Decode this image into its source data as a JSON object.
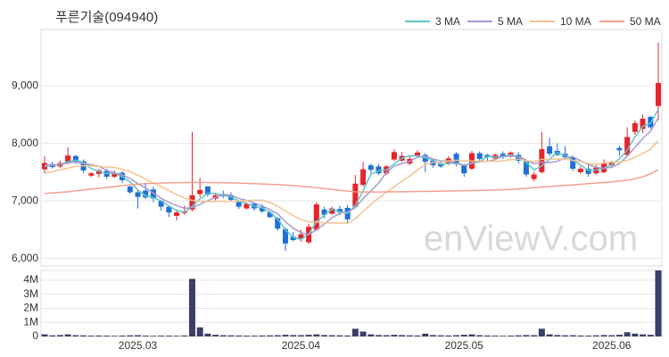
{
  "chart_data": [
    {
      "type": "candlestick",
      "title": "푸른기술(094940)",
      "watermark": "enViewV.com",
      "open": [
        7550,
        7640,
        7600,
        7660,
        7780,
        7690,
        7440,
        7470,
        7520,
        7420,
        7490,
        7250,
        7150,
        7180,
        7200,
        7000,
        6900,
        6740,
        6790,
        6850,
        7120,
        7250,
        7040,
        7110,
        7100,
        6980,
        6870,
        6950,
        6900,
        6800,
        6700,
        6510,
        6380,
        6340,
        6280,
        6500,
        6850,
        6780,
        6860,
        6880,
        6900,
        7280,
        7620,
        7600,
        7480,
        7720,
        7700,
        7650,
        7780,
        7800,
        7700,
        7650,
        7650,
        7820,
        7620,
        7560,
        7830,
        7800,
        7740,
        7820,
        7780,
        7800,
        7680,
        7380,
        7500,
        7950,
        7870,
        7820,
        7760,
        7500,
        7560,
        7480,
        7500,
        7620,
        7920,
        7800,
        8200,
        8250,
        8460,
        8650
      ],
      "high": [
        7780,
        7680,
        7700,
        7930,
        7800,
        7720,
        7500,
        7560,
        7560,
        7530,
        7520,
        7280,
        7180,
        7300,
        7250,
        7020,
        6930,
        6850,
        6920,
        8200,
        7400,
        7260,
        7140,
        7180,
        7150,
        7010,
        6980,
        6980,
        6940,
        6830,
        6720,
        6540,
        6460,
        6500,
        6600,
        6980,
        6900,
        6900,
        6920,
        6930,
        7450,
        7680,
        7650,
        7640,
        7630,
        7900,
        7850,
        7780,
        7880,
        7830,
        7740,
        7700,
        7780,
        7850,
        7640,
        7870,
        7860,
        7820,
        7830,
        7860,
        7860,
        7850,
        7700,
        7500,
        8200,
        8100,
        8000,
        7950,
        7790,
        7600,
        7620,
        7620,
        7720,
        7700,
        7960,
        8280,
        8400,
        8500,
        8480,
        9750
      ],
      "low": [
        7480,
        7560,
        7570,
        7640,
        7640,
        7480,
        7410,
        7410,
        7380,
        7400,
        7310,
        7130,
        6870,
        7030,
        6980,
        6830,
        6720,
        6660,
        6760,
        6820,
        7070,
        7070,
        7010,
        7050,
        7000,
        6860,
        6850,
        6830,
        6790,
        6700,
        6480,
        6130,
        6300,
        6290,
        6250,
        6480,
        6700,
        6760,
        6750,
        6620,
        6870,
        7250,
        7480,
        7450,
        7450,
        7690,
        7680,
        7620,
        7760,
        7500,
        7580,
        7570,
        7620,
        7600,
        7420,
        7540,
        7700,
        7700,
        7720,
        7730,
        7750,
        7650,
        7420,
        7340,
        7480,
        7780,
        7780,
        7720,
        7520,
        7470,
        7420,
        7450,
        7480,
        7580,
        7780,
        7780,
        8150,
        8180,
        8250,
        8400
      ],
      "close": [
        7660,
        7590,
        7660,
        7790,
        7680,
        7530,
        7480,
        7530,
        7420,
        7490,
        7360,
        7150,
        7070,
        7060,
        7040,
        6900,
        6800,
        6800,
        6820,
        7100,
        7190,
        7110,
        7100,
        7080,
        7020,
        6900,
        6950,
        6870,
        6820,
        6720,
        6520,
        6260,
        6320,
        6420,
        6550,
        6940,
        6760,
        6870,
        6800,
        6680,
        7300,
        7550,
        7540,
        7480,
        7600,
        7850,
        7780,
        7730,
        7840,
        7680,
        7620,
        7600,
        7740,
        7640,
        7480,
        7830,
        7730,
        7760,
        7800,
        7760,
        7840,
        7700,
        7460,
        7460,
        7900,
        7820,
        7800,
        7760,
        7560,
        7560,
        7470,
        7580,
        7660,
        7660,
        7880,
        8110,
        8350,
        8430,
        8280,
        9050
      ],
      "up_color": "#e8232b",
      "down_color": "#1f6fd8",
      "series": [
        {
          "name": "3 MA",
          "color": "#5cc6c8",
          "values": [
            7600,
            7620,
            7637,
            7680,
            7710,
            7667,
            7563,
            7513,
            7477,
            7480,
            7423,
            7333,
            7193,
            7093,
            7057,
            7000,
            6913,
            6833,
            6807,
            6907,
            7037,
            7133,
            7133,
            7097,
            7067,
            7000,
            6957,
            6907,
            6880,
            6803,
            6687,
            6500,
            6367,
            6333,
            6430,
            6637,
            6750,
            6857,
            6810,
            6783,
            6927,
            7177,
            7463,
            7523,
            7540,
            7643,
            7743,
            7787,
            7783,
            7750,
            7713,
            7633,
            7653,
            7660,
            7620,
            7650,
            7680,
            7773,
            7763,
            7773,
            7800,
            7767,
            7667,
            7540,
            7607,
            7727,
            7840,
            7793,
            7707,
            7627,
            7530,
            7537,
            7570,
            7633,
            7733,
            7883,
            8113,
            8297,
            8353,
            8587
          ]
        },
        {
          "name": "5 MA",
          "color": "#a99bcc",
          "values": [
            7620,
            7620,
            7630,
            7660,
            7676,
            7650,
            7628,
            7602,
            7528,
            7490,
            7456,
            7390,
            7298,
            7226,
            7136,
            7044,
            6974,
            6920,
            6872,
            6884,
            6942,
            7004,
            7064,
            7116,
            7100,
            7042,
            7010,
            6964,
            6912,
            6852,
            6776,
            6638,
            6528,
            6448,
            6414,
            6498,
            6598,
            6708,
            6784,
            6810,
            6882,
            7040,
            7174,
            7310,
            7494,
            7604,
            7650,
            7688,
            7760,
            7776,
            7730,
            7694,
            7696,
            7656,
            7616,
            7658,
            7684,
            7688,
            7720,
            7776,
            7778,
            7772,
            7712,
            7644,
            7672,
            7668,
            7688,
            7748,
            7768,
            7700,
            7630,
            7586,
            7566,
            7586,
            7650,
            7778,
            7932,
            8086,
            8210,
            8444
          ]
        },
        {
          "name": "10 MA",
          "color": "#f2c392",
          "values": [
            7480,
            7510,
            7540,
            7570,
            7600,
            7610,
            7610,
            7600,
            7590,
            7583,
            7553,
            7509,
            7450,
            7377,
            7313,
            7250,
            7182,
            7109,
            7049,
            7010,
            6993,
            6989,
            6992,
            6994,
            6992,
            6992,
            7007,
            7014,
            7014,
            6976,
            6909,
            6824,
            6746,
            6680,
            6633,
            6637,
            6618,
            6618,
            6616,
            6612,
            6690,
            6819,
            6941,
            7047,
            7152,
            7243,
            7345,
            7431,
            7535,
            7635,
            7667,
            7672,
            7692,
            7708,
            7696,
            7694,
            7689,
            7692,
            7688,
            7696,
            7718,
            7728,
            7700,
            7682,
            7724,
            7723,
            7730,
            7730,
            7706,
            7686,
            7649,
            7637,
            7657,
            7677,
            7675,
            7704,
            7759,
            7826,
            7898,
            8047
          ]
        },
        {
          "name": "50 MA",
          "color": "#f2a08f",
          "values": [
            7130,
            7140,
            7150,
            7160,
            7175,
            7190,
            7205,
            7220,
            7235,
            7250,
            7265,
            7280,
            7290,
            7300,
            7305,
            7310,
            7315,
            7318,
            7320,
            7322,
            7322,
            7320,
            7318,
            7316,
            7313,
            7310,
            7305,
            7300,
            7295,
            7290,
            7283,
            7275,
            7265,
            7255,
            7245,
            7230,
            7215,
            7200,
            7185,
            7170,
            7160,
            7155,
            7155,
            7155,
            7158,
            7160,
            7160,
            7162,
            7165,
            7165,
            7168,
            7170,
            7172,
            7175,
            7178,
            7180,
            7182,
            7185,
            7190,
            7195,
            7200,
            7210,
            7220,
            7230,
            7240,
            7250,
            7260,
            7270,
            7280,
            7290,
            7300,
            7310,
            7320,
            7330,
            7345,
            7360,
            7385,
            7420,
            7470,
            7540
          ]
        }
      ],
      "ylim": [
        5870,
        9980
      ],
      "yticks": [
        {
          "value": 6000,
          "label": "6,000"
        },
        {
          "value": 7000,
          "label": "7,000"
        },
        {
          "value": 8000,
          "label": "8,000"
        },
        {
          "value": 9000,
          "label": "9,000"
        }
      ],
      "grid": true,
      "legend": "top-right"
    },
    {
      "type": "bar",
      "categories": [
        null,
        null,
        null,
        null,
        null,
        null,
        null,
        null,
        null,
        null,
        null,
        null,
        "2025.03",
        null,
        null,
        null,
        null,
        null,
        null,
        null,
        null,
        null,
        null,
        null,
        null,
        null,
        null,
        null,
        null,
        null,
        null,
        null,
        null,
        "2025.04",
        null,
        null,
        null,
        null,
        null,
        null,
        null,
        null,
        null,
        null,
        null,
        null,
        null,
        null,
        null,
        null,
        null,
        null,
        null,
        null,
        "2025.05",
        null,
        null,
        null,
        null,
        null,
        null,
        null,
        null,
        null,
        null,
        null,
        null,
        null,
        null,
        null,
        null,
        null,
        null,
        "2025.06",
        null,
        null,
        null,
        null,
        null,
        null
      ],
      "values": [
        150000,
        80000,
        100000,
        150000,
        90000,
        80000,
        60000,
        70000,
        60000,
        50000,
        60000,
        80000,
        90000,
        60000,
        50000,
        60000,
        60000,
        50000,
        70000,
        4100000,
        650000,
        200000,
        120000,
        90000,
        80000,
        70000,
        60000,
        60000,
        70000,
        80000,
        90000,
        120000,
        100000,
        90000,
        120000,
        150000,
        100000,
        90000,
        80000,
        70000,
        550000,
        350000,
        150000,
        100000,
        90000,
        120000,
        100000,
        80000,
        70000,
        200000,
        100000,
        80000,
        70000,
        90000,
        120000,
        150000,
        90000,
        70000,
        60000,
        50000,
        60000,
        80000,
        100000,
        90000,
        550000,
        150000,
        100000,
        80000,
        90000,
        70000,
        60000,
        80000,
        100000,
        90000,
        120000,
        300000,
        200000,
        150000,
        120000,
        4700000
      ],
      "color": "#3b3f68",
      "ylim": [
        0,
        4700000
      ],
      "yticks": [
        0,
        {
          "value": 1000000,
          "label": "1M"
        },
        {
          "value": 2000000,
          "label": "2M"
        },
        {
          "value": 3000000,
          "label": "3M"
        },
        {
          "value": 4000000,
          "label": "4M"
        }
      ],
      "grid": true
    }
  ]
}
